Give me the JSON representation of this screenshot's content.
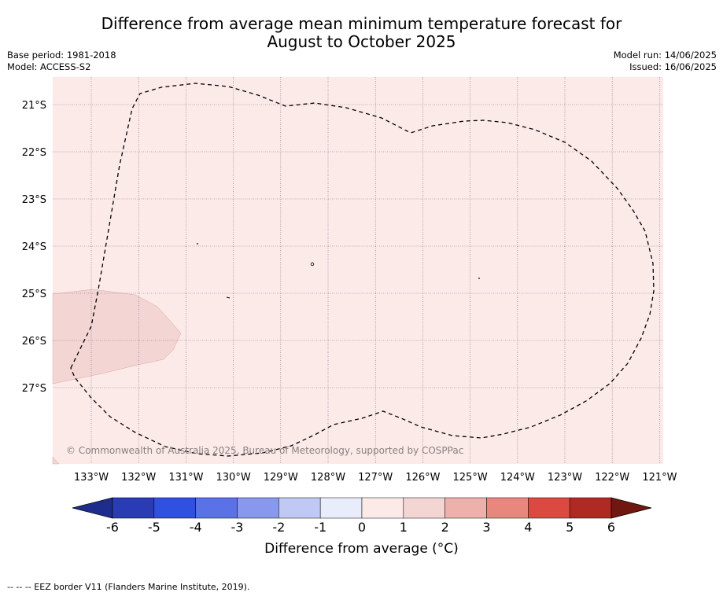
{
  "title": {
    "line1": "Difference from average mean minimum temperature forecast for",
    "line2": "August to October 2025"
  },
  "meta_left": {
    "base_period": "Base period: 1981-2018",
    "model": "Model: ACCESS-S2"
  },
  "meta_right": {
    "model_run": "Model run: 14/06/2025",
    "issued": "Issued: 16/06/2025"
  },
  "map": {
    "latitude_labels": [
      "21°S",
      "22°S",
      "23°S",
      "24°S",
      "25°S",
      "26°S",
      "27°S"
    ],
    "longitude_labels": [
      "133°W",
      "132°W",
      "131°W",
      "130°W",
      "129°W",
      "128°W",
      "127°W",
      "126°W",
      "125°W",
      "124°W",
      "123°W",
      "122°W",
      "121°W"
    ],
    "copyright": "© Commonwealth of Australia 2025, Bureau of Meteorology, supported by COSPPac",
    "background_color": "#fbeae8",
    "warm_zone_color": "#f3d5d3"
  },
  "colorbar": {
    "ticks": [
      "-6",
      "-5",
      "-4",
      "-3",
      "-2",
      "-1",
      "0",
      "1",
      "2",
      "3",
      "4",
      "5",
      "6"
    ],
    "colors": [
      "#1e2d8c",
      "#2a3cb4",
      "#3050e0",
      "#5a72e6",
      "#8898ee",
      "#c0c8f4",
      "#e8ecfb",
      "#fbeae8",
      "#f3d5d3",
      "#eeb0aa",
      "#e8877e",
      "#da4a40",
      "#ae2a22",
      "#70170f"
    ],
    "label": "Difference from average ($^\\circ$C)",
    "label_display": "Difference from average (°C)"
  },
  "footnote": "--  --  -- EEZ border V11 (Flanders Marine Institute, 2019)."
}
